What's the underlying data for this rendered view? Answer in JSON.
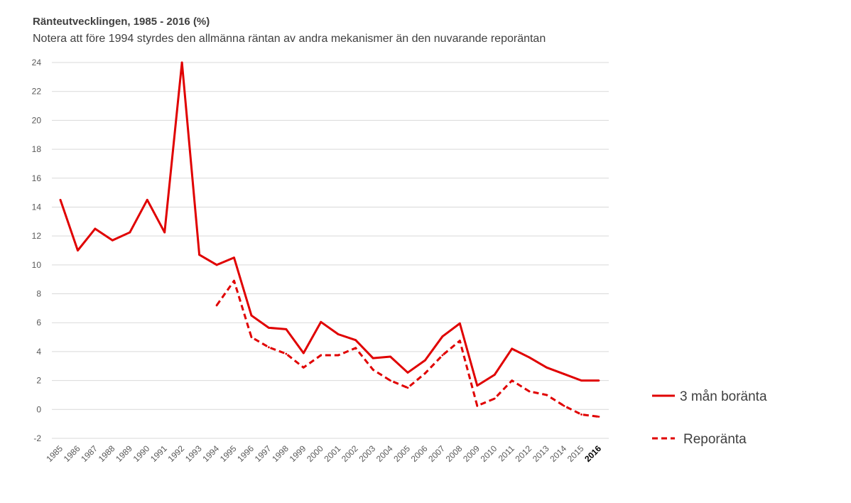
{
  "chart_data": {
    "type": "line",
    "title": "Ränteutvecklingen, 1985 - 2016 (%)",
    "subtitle": "Notera att före 1994 styrdes den allmänna räntan av andra mekanismer än den nuvarande reporäntan",
    "categories": [
      "1985",
      "1986",
      "1987",
      "1988",
      "1989",
      "1990",
      "1991",
      "1992",
      "1993",
      "1994",
      "1995",
      "1996",
      "1997",
      "1998",
      "1999",
      "2000",
      "2001",
      "2002",
      "2003",
      "2004",
      "2005",
      "2006",
      "2007",
      "2008",
      "2009",
      "2010",
      "2011",
      "2012",
      "2013",
      "2014",
      "2015",
      "2016"
    ],
    "highlighted_category": "2016",
    "y_ticks": [
      -2,
      0,
      2,
      4,
      6,
      8,
      10,
      12,
      14,
      16,
      18,
      20,
      22,
      24
    ],
    "ylim": [
      -2,
      24
    ],
    "grid": "horizontal",
    "legend_position": "right",
    "series": [
      {
        "name": "3 mån boränta",
        "style": "solid",
        "color": "#e00000",
        "values": [
          14.5,
          11.0,
          12.5,
          11.7,
          12.25,
          14.5,
          12.25,
          24.0,
          10.7,
          10.0,
          10.5,
          6.5,
          5.65,
          5.55,
          3.9,
          6.05,
          5.2,
          4.8,
          3.55,
          3.65,
          2.55,
          3.4,
          5.05,
          5.95,
          1.65,
          2.4,
          4.2,
          3.6,
          2.9,
          2.45,
          2.0,
          2.0
        ]
      },
      {
        "name": "Reporänta",
        "style": "dashed",
        "color": "#e00000",
        "values": [
          null,
          null,
          null,
          null,
          null,
          null,
          null,
          null,
          null,
          7.2,
          8.9,
          5.0,
          4.3,
          3.85,
          2.9,
          3.75,
          3.75,
          4.25,
          2.75,
          2.0,
          1.5,
          2.5,
          3.75,
          4.75,
          0.25,
          0.75,
          2.0,
          1.25,
          1.0,
          0.25,
          -0.35,
          -0.5
        ]
      }
    ]
  }
}
